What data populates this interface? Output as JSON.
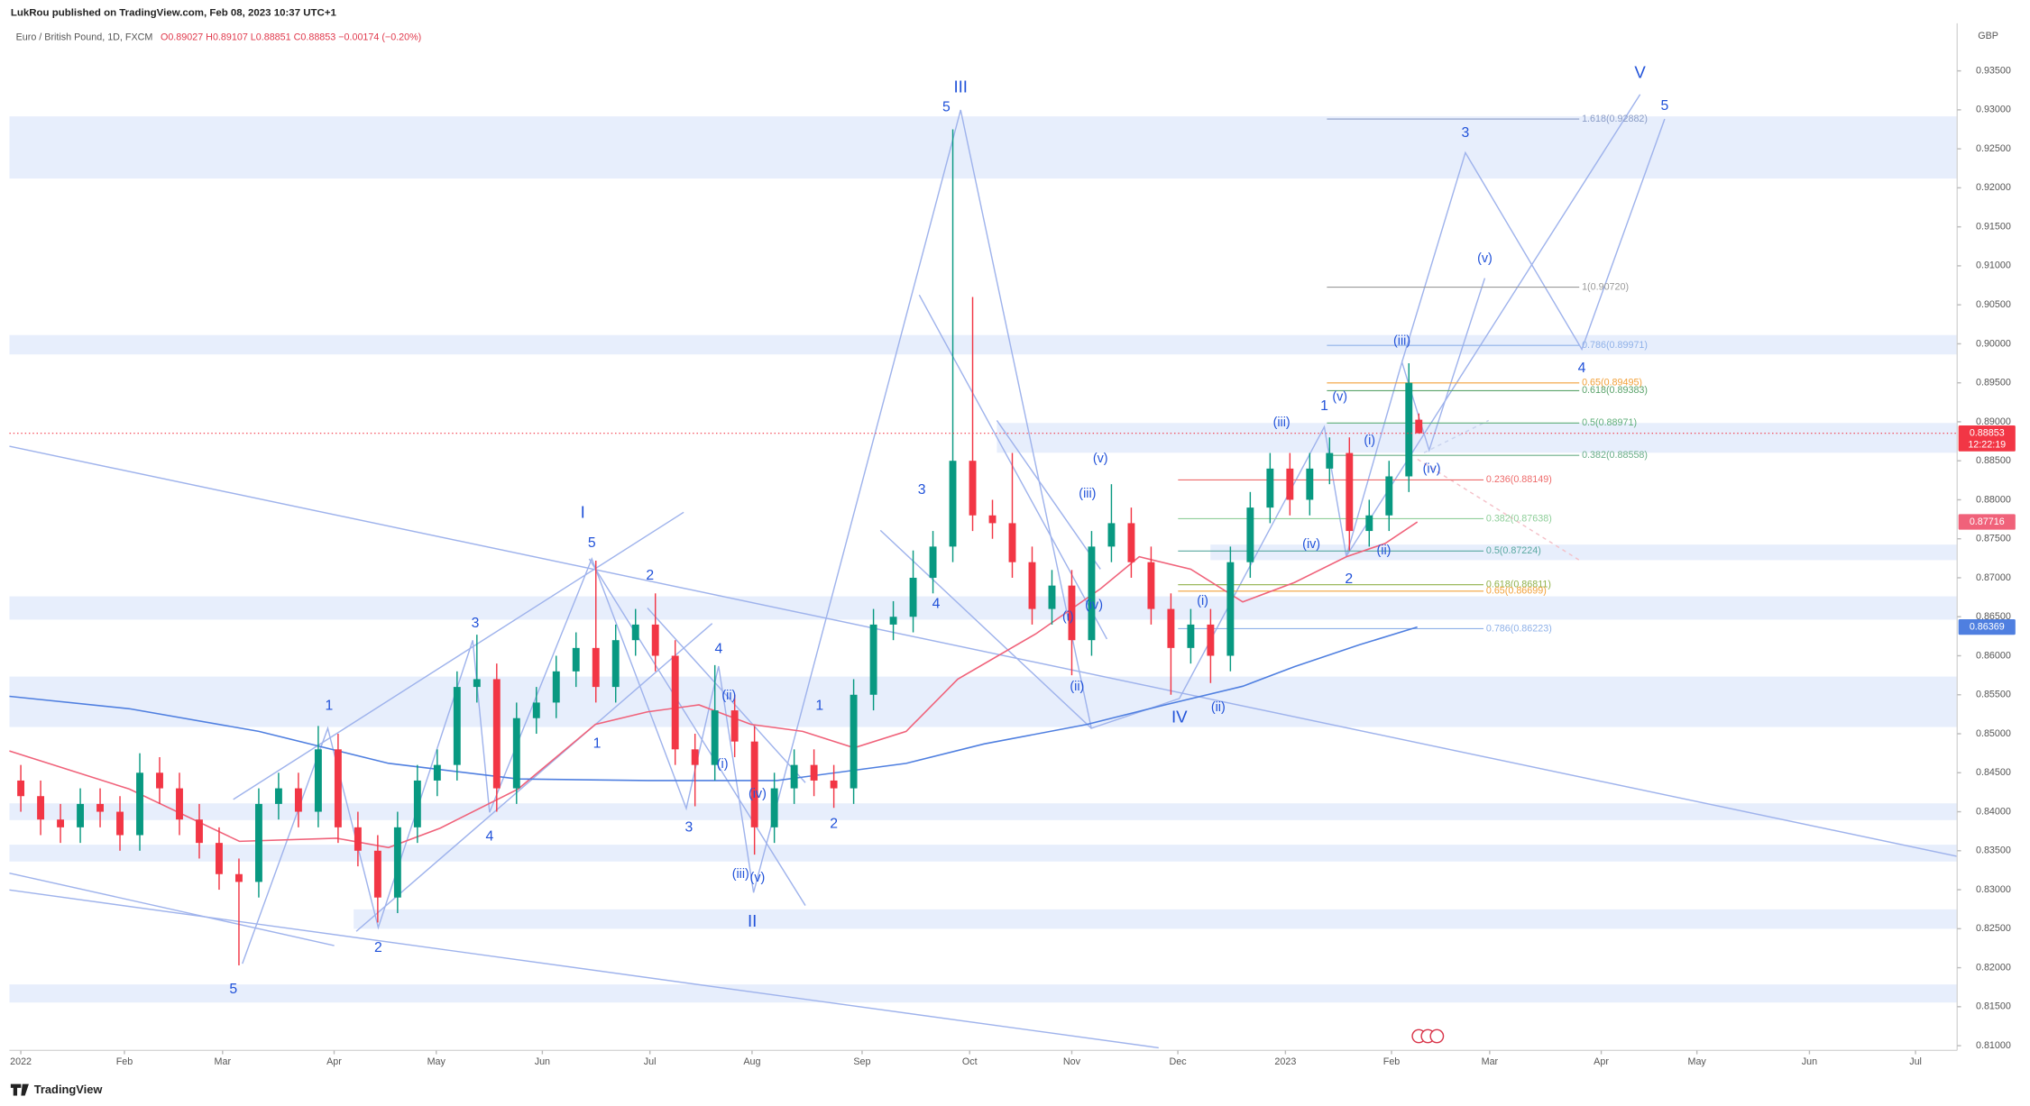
{
  "header": {
    "publisher": "LukRou published on TradingView.com, Feb 08, 2023 10:37 UTC+1",
    "symbol": "Euro / British Pound, 1D, FXCM",
    "ohlc": "O0.89027 H0.89107 L0.88851 C0.88853 −0.00174 (−0.20%)"
  },
  "footer": {
    "brand": "TradingView"
  },
  "chart_data": {
    "type": "candlestick",
    "currency": "GBP",
    "x": [
      0,
      4,
      8,
      12,
      16,
      20,
      24,
      28,
      32,
      36,
      40,
      44,
      48,
      52,
      56,
      60,
      64,
      68,
      72,
      76,
      80,
      84,
      88,
      92,
      96,
      100,
      104,
      108,
      112,
      116,
      120,
      124,
      128,
      132,
      136,
      140,
      144,
      148,
      152,
      156,
      160,
      164,
      168,
      172,
      176,
      180,
      184,
      188,
      192,
      196,
      200,
      204,
      208,
      212,
      216,
      220,
      224,
      228,
      232,
      236,
      240,
      244,
      248,
      252,
      256,
      260,
      264,
      268,
      272,
      276,
      280,
      282
    ],
    "open": [
      0.844,
      0.842,
      0.839,
      0.838,
      0.841,
      0.84,
      0.837,
      0.845,
      0.843,
      0.839,
      0.836,
      0.832,
      0.831,
      0.841,
      0.843,
      0.84,
      0.848,
      0.838,
      0.835,
      0.829,
      0.838,
      0.844,
      0.846,
      0.856,
      0.857,
      0.843,
      0.852,
      0.854,
      0.858,
      0.861,
      0.856,
      0.862,
      0.864,
      0.86,
      0.848,
      0.846,
      0.853,
      0.849,
      0.838,
      0.843,
      0.846,
      0.844,
      0.843,
      0.855,
      0.864,
      0.865,
      0.87,
      0.874,
      0.885,
      0.878,
      0.877,
      0.872,
      0.866,
      0.869,
      0.862,
      0.874,
      0.877,
      0.872,
      0.866,
      0.861,
      0.864,
      0.86,
      0.872,
      0.879,
      0.884,
      0.88,
      0.884,
      0.886,
      0.876,
      0.878,
      0.883,
      0.89027
    ],
    "high": [
      0.846,
      0.844,
      0.841,
      0.843,
      0.843,
      0.842,
      0.8475,
      0.847,
      0.845,
      0.841,
      0.838,
      0.834,
      0.843,
      0.845,
      0.845,
      0.851,
      0.85,
      0.84,
      0.837,
      0.84,
      0.846,
      0.848,
      0.858,
      0.8627,
      0.859,
      0.854,
      0.856,
      0.86,
      0.863,
      0.8722,
      0.864,
      0.866,
      0.868,
      0.862,
      0.85,
      0.8588,
      0.855,
      0.851,
      0.845,
      0.848,
      0.848,
      0.846,
      0.857,
      0.866,
      0.867,
      0.8735,
      0.876,
      0.9275,
      0.906,
      0.88,
      0.886,
      0.874,
      0.871,
      0.871,
      0.876,
      0.882,
      0.879,
      0.874,
      0.868,
      0.866,
      0.866,
      0.874,
      0.881,
      0.886,
      0.886,
      0.886,
      0.888,
      0.888,
      0.88,
      0.885,
      0.8975,
      0.89107
    ],
    "low": [
      0.84,
      0.837,
      0.836,
      0.836,
      0.838,
      0.835,
      0.835,
      0.841,
      0.837,
      0.834,
      0.83,
      0.8203,
      0.829,
      0.839,
      0.838,
      0.838,
      0.836,
      0.833,
      0.8258,
      0.827,
      0.836,
      0.842,
      0.844,
      0.854,
      0.84,
      0.841,
      0.85,
      0.852,
      0.856,
      0.854,
      0.854,
      0.86,
      0.858,
      0.846,
      0.8407,
      0.844,
      0.847,
      0.8345,
      0.836,
      0.841,
      0.842,
      0.8405,
      0.841,
      0.853,
      0.862,
      0.863,
      0.868,
      0.872,
      0.876,
      0.875,
      0.87,
      0.864,
      0.864,
      0.8575,
      0.86,
      0.872,
      0.87,
      0.864,
      0.855,
      0.859,
      0.8565,
      0.858,
      0.87,
      0.877,
      0.878,
      0.878,
      0.882,
      0.8735,
      0.874,
      0.876,
      0.881,
      0.88851
    ],
    "close": [
      0.842,
      0.839,
      0.838,
      0.841,
      0.84,
      0.837,
      0.845,
      0.843,
      0.839,
      0.836,
      0.832,
      0.831,
      0.841,
      0.843,
      0.84,
      0.848,
      0.838,
      0.835,
      0.829,
      0.838,
      0.844,
      0.846,
      0.856,
      0.857,
      0.843,
      0.852,
      0.854,
      0.858,
      0.861,
      0.856,
      0.862,
      0.864,
      0.86,
      0.848,
      0.846,
      0.853,
      0.849,
      0.838,
      0.843,
      0.846,
      0.844,
      0.843,
      0.855,
      0.864,
      0.865,
      0.87,
      0.874,
      0.885,
      0.878,
      0.877,
      0.872,
      0.866,
      0.869,
      0.862,
      0.874,
      0.877,
      0.872,
      0.866,
      0.861,
      0.864,
      0.86,
      0.872,
      0.879,
      0.884,
      0.88,
      0.884,
      0.886,
      0.876,
      0.878,
      0.883,
      0.895,
      0.88853
    ],
    "up_color": "#089981",
    "down_color": "#f23645",
    "xlim": [
      -2.3,
      390.6
    ],
    "xticks": [
      {
        "value": 0,
        "label": "2022"
      },
      {
        "value": 20.9,
        "label": "Feb"
      },
      {
        "value": 40.7,
        "label": "Mar"
      },
      {
        "value": 63.2,
        "label": "Apr"
      },
      {
        "value": 83.8,
        "label": "May"
      },
      {
        "value": 105.2,
        "label": "Jun"
      },
      {
        "value": 126.9,
        "label": "Jul"
      },
      {
        "value": 147.5,
        "label": "Aug"
      },
      {
        "value": 169.7,
        "label": "Sep"
      },
      {
        "value": 191.4,
        "label": "Oct"
      },
      {
        "value": 212.0,
        "label": "Nov"
      },
      {
        "value": 233.4,
        "label": "Dec"
      },
      {
        "value": 255.1,
        "label": "2023"
      },
      {
        "value": 276.5,
        "label": "Feb"
      },
      {
        "value": 296.3,
        "label": "Mar"
      },
      {
        "value": 318.8,
        "label": "Apr"
      },
      {
        "value": 338.1,
        "label": "May"
      },
      {
        "value": 360.8,
        "label": "Jun"
      },
      {
        "value": 382.2,
        "label": "Jul"
      }
    ],
    "ylim": [
      0.8094,
      0.9411
    ],
    "yticks": [
      {
        "value": 0.81,
        "label": "0.81000"
      },
      {
        "value": 0.815,
        "label": "0.81500"
      },
      {
        "value": 0.82,
        "label": "0.82000"
      },
      {
        "value": 0.825,
        "label": "0.82500"
      },
      {
        "value": 0.83,
        "label": "0.83000"
      },
      {
        "value": 0.835,
        "label": "0.83500"
      },
      {
        "value": 0.84,
        "label": "0.84000"
      },
      {
        "value": 0.845,
        "label": "0.84500"
      },
      {
        "value": 0.85,
        "label": "0.85000"
      },
      {
        "value": 0.855,
        "label": "0.85500"
      },
      {
        "value": 0.86,
        "label": "0.86000"
      },
      {
        "value": 0.865,
        "label": "0.86500"
      },
      {
        "value": 0.87,
        "label": "0.87000"
      },
      {
        "value": 0.875,
        "label": "0.87500"
      },
      {
        "value": 0.88,
        "label": "0.88000"
      },
      {
        "value": 0.885,
        "label": "0.88500"
      },
      {
        "value": 0.89,
        "label": "0.89000"
      },
      {
        "value": 0.895,
        "label": "0.89500"
      },
      {
        "value": 0.9,
        "label": "0.90000"
      },
      {
        "value": 0.905,
        "label": "0.90500"
      },
      {
        "value": 0.91,
        "label": "0.91000"
      },
      {
        "value": 0.915,
        "label": "0.91500"
      },
      {
        "value": 0.92,
        "label": "0.92000"
      },
      {
        "value": 0.925,
        "label": "0.92500"
      },
      {
        "value": 0.93,
        "label": "0.93000"
      },
      {
        "value": 0.935,
        "label": "0.93500"
      }
    ],
    "grid": false,
    "moving_averages": [
      {
        "color": "#f0627a",
        "x": [
          -2.3,
          21.9,
          44.1,
          63.7,
          74.2,
          84.6,
          100.3,
          115.9,
          126.4,
          136.8,
          147.3,
          157.7,
          168.1,
          178.6,
          189,
          204.7,
          217.8,
          225.6,
          236,
          246.5,
          256.9,
          267.4,
          275.2,
          281.7
        ],
        "values": [
          0.8478,
          0.8429,
          0.8362,
          0.8366,
          0.8354,
          0.8379,
          0.8429,
          0.8512,
          0.8528,
          0.8537,
          0.8512,
          0.8503,
          0.8482,
          0.8503,
          0.857,
          0.8628,
          0.8686,
          0.8727,
          0.8711,
          0.8669,
          0.8694,
          0.8727,
          0.8744,
          0.87716
        ]
      },
      {
        "color": "#4f7fe0",
        "x": [
          -2.3,
          21.9,
          48,
          74.2,
          100.3,
          126.4,
          152.5,
          178.6,
          194.3,
          215.1,
          230.8,
          246.5,
          256.9,
          270,
          281.7
        ],
        "values": [
          0.8548,
          0.8532,
          0.8503,
          0.8462,
          0.8442,
          0.844,
          0.844,
          0.8462,
          0.8487,
          0.8512,
          0.8537,
          0.8561,
          0.8586,
          0.8614,
          0.86369
        ]
      }
    ],
    "countdown": "12:22:19",
    "fib_levels": [
      "1.618(0.92882)",
      "1(0.90720)",
      "0.786(0.89971)",
      "0.65(0.89495)",
      "0.618(0.89383)",
      "0.5(0.88971)",
      "0.382(0.88558)",
      "0.236(0.88149)",
      "0.382(0.87638)",
      "0.5(0.87224)",
      "0.618(0.86811)",
      "0.65(0.86699)",
      "0.786(0.86223)"
    ],
    "wave_labels": [
      "III",
      "5",
      "V",
      "5",
      "3",
      "(v)",
      "(iii)",
      "4",
      "1",
      "(v)",
      "(iii)",
      "(i)",
      "(iv)",
      "(iv)",
      "(ii)",
      "2",
      "(v)",
      "(iii)",
      "3",
      "4",
      "(iv)",
      "(i)",
      "(ii)",
      "(i)",
      "IV",
      "(ii)",
      "I",
      "5",
      "2",
      "3",
      "1",
      "4",
      "(ii)",
      "1",
      "(i)",
      "(iv)",
      "1",
      "3",
      "4",
      "2",
      "(iii)",
      "(v)",
      "II",
      "2",
      "5"
    ]
  }
}
